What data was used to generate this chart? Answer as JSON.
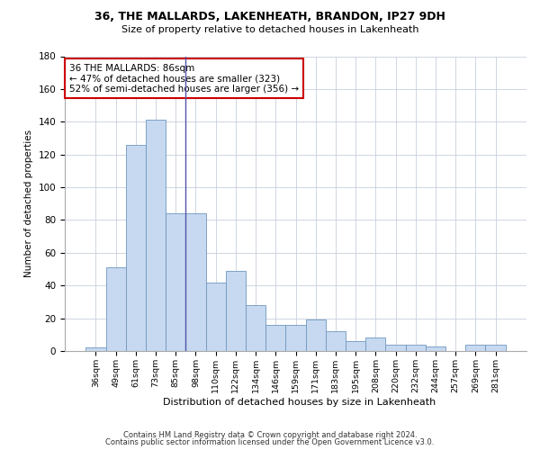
{
  "title1": "36, THE MALLARDS, LAKENHEATH, BRANDON, IP27 9DH",
  "title2": "Size of property relative to detached houses in Lakenheath",
  "xlabel": "Distribution of detached houses by size in Lakenheath",
  "ylabel": "Number of detached properties",
  "categories": [
    "36sqm",
    "49sqm",
    "61sqm",
    "73sqm",
    "85sqm",
    "98sqm",
    "110sqm",
    "122sqm",
    "134sqm",
    "146sqm",
    "159sqm",
    "171sqm",
    "183sqm",
    "195sqm",
    "208sqm",
    "220sqm",
    "232sqm",
    "244sqm",
    "257sqm",
    "269sqm",
    "281sqm"
  ],
  "values": [
    2,
    51,
    126,
    141,
    84,
    84,
    42,
    49,
    28,
    16,
    16,
    19,
    12,
    6,
    8,
    4,
    4,
    3,
    0,
    4,
    4
  ],
  "bar_color": "#c6d9f0",
  "bar_edge_color": "#7097bf",
  "vline_x_index": 4,
  "vline_color": "#5555aa",
  "annotation_text": "36 THE MALLARDS: 86sqm\n← 47% of detached houses are smaller (323)\n52% of semi-detached houses are larger (356) →",
  "annotation_box_color": "#ffffff",
  "annotation_box_edge": "#cc0000",
  "ylim": [
    0,
    180
  ],
  "yticks": [
    0,
    20,
    40,
    60,
    80,
    100,
    120,
    140,
    160,
    180
  ],
  "bg_color": "#ffffff",
  "grid_color": "#c8d0dc",
  "footer1": "Contains HM Land Registry data © Crown copyright and database right 2024.",
  "footer2": "Contains public sector information licensed under the Open Government Licence v3.0."
}
